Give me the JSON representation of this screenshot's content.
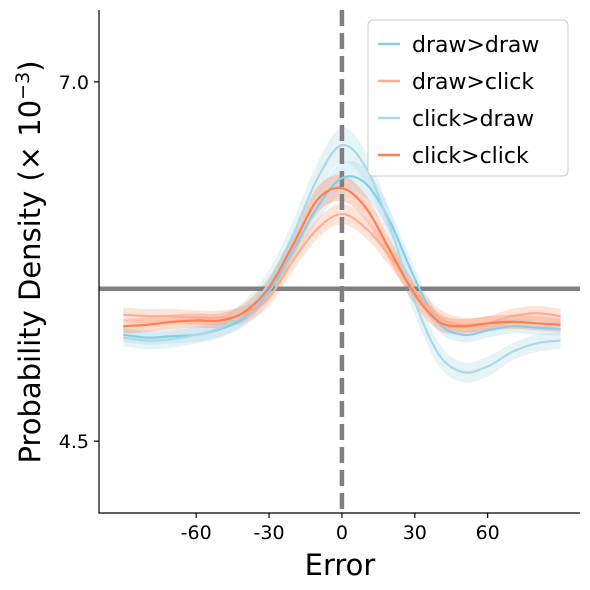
{
  "chart_data": {
    "type": "line",
    "xlabel": "Error",
    "ylabel": "Probability Density (× 10",
    "ylabel_exp": "−3",
    "ylabel_close": ")",
    "xlim": [
      -100,
      98
    ],
    "ylim": [
      4.0,
      7.5
    ],
    "xticks": [
      -60,
      -30,
      0,
      30,
      60
    ],
    "xtick_labels": [
      "-60",
      "-30",
      "0",
      "30",
      "60"
    ],
    "yticks": [
      4.5,
      7.0
    ],
    "ytick_labels": [
      "4.5",
      "7.0"
    ],
    "reference_lines": {
      "vertical_x": 0,
      "horizontal_y": 5.56,
      "color": "#808080"
    },
    "legend_position": "top-right",
    "x": [
      -90,
      -80,
      -70,
      -60,
      -50,
      -40,
      -30,
      -20,
      -10,
      0,
      10,
      20,
      30,
      40,
      50,
      60,
      70,
      80,
      90
    ],
    "series": [
      {
        "name": "draw>draw",
        "color": "#87ceeb",
        "band_opacity": 0.25,
        "values": [
          5.24,
          5.22,
          5.23,
          5.24,
          5.28,
          5.36,
          5.54,
          5.83,
          6.13,
          6.33,
          6.29,
          6.02,
          5.63,
          5.32,
          5.24,
          5.27,
          5.3,
          5.29,
          5.28
        ],
        "band": [
          0.05,
          0.05,
          0.05,
          0.05,
          0.05,
          0.06,
          0.07,
          0.08,
          0.1,
          0.11,
          0.1,
          0.08,
          0.07,
          0.06,
          0.05,
          0.05,
          0.05,
          0.05,
          0.05
        ]
      },
      {
        "name": "draw>click",
        "color": "#fcae91",
        "band_opacity": 0.35,
        "values": [
          5.38,
          5.37,
          5.37,
          5.36,
          5.36,
          5.38,
          5.5,
          5.76,
          5.98,
          6.08,
          5.98,
          5.78,
          5.55,
          5.36,
          5.31,
          5.32,
          5.37,
          5.39,
          5.37
        ],
        "band": [
          0.05,
          0.05,
          0.05,
          0.05,
          0.05,
          0.06,
          0.06,
          0.07,
          0.07,
          0.07,
          0.07,
          0.07,
          0.06,
          0.06,
          0.05,
          0.05,
          0.05,
          0.05,
          0.05
        ]
      },
      {
        "name": "click>draw",
        "color": "#add8e6",
        "band_opacity": 0.3,
        "values": [
          5.22,
          5.2,
          5.21,
          5.24,
          5.29,
          5.4,
          5.6,
          5.94,
          6.33,
          6.56,
          6.4,
          5.98,
          5.47,
          5.1,
          4.98,
          5.02,
          5.12,
          5.18,
          5.2
        ],
        "band": [
          0.06,
          0.06,
          0.06,
          0.06,
          0.07,
          0.08,
          0.09,
          0.1,
          0.11,
          0.12,
          0.11,
          0.1,
          0.09,
          0.08,
          0.07,
          0.07,
          0.06,
          0.06,
          0.06
        ]
      },
      {
        "name": "click>click",
        "color": "#ff7f50",
        "band_opacity": 0.3,
        "values": [
          5.3,
          5.31,
          5.33,
          5.34,
          5.34,
          5.4,
          5.57,
          5.87,
          6.18,
          6.26,
          6.12,
          5.82,
          5.52,
          5.33,
          5.3,
          5.32,
          5.33,
          5.32,
          5.31
        ],
        "band": [
          0.05,
          0.05,
          0.05,
          0.05,
          0.05,
          0.06,
          0.07,
          0.08,
          0.09,
          0.09,
          0.09,
          0.08,
          0.07,
          0.06,
          0.05,
          0.05,
          0.05,
          0.05,
          0.05
        ]
      }
    ]
  }
}
